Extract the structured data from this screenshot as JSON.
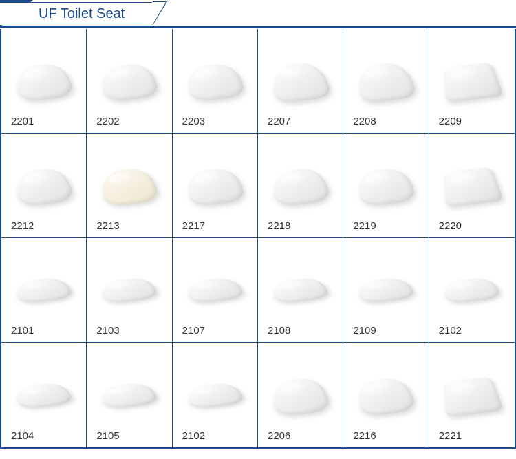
{
  "header": {
    "title": "UF Toilet Seat"
  },
  "theme": {
    "border_color": "#1a4b8c",
    "text_color": "#333333",
    "background": "#ffffff"
  },
  "grid": {
    "columns": 6,
    "rows": 4,
    "items": [
      {
        "sku": "2201",
        "shape": "round"
      },
      {
        "sku": "2202",
        "shape": "round"
      },
      {
        "sku": "2203",
        "shape": "round"
      },
      {
        "sku": "2207",
        "shape": "elongated"
      },
      {
        "sku": "2208",
        "shape": "elongated"
      },
      {
        "sku": "2209",
        "shape": "square"
      },
      {
        "sku": "2212",
        "shape": "round"
      },
      {
        "sku": "2213",
        "shape": "cream"
      },
      {
        "sku": "2217",
        "shape": "round"
      },
      {
        "sku": "2218",
        "shape": "round"
      },
      {
        "sku": "2219",
        "shape": "round"
      },
      {
        "sku": "2220",
        "shape": "square"
      },
      {
        "sku": "2101",
        "shape": "thin"
      },
      {
        "sku": "2103",
        "shape": "thin"
      },
      {
        "sku": "2107",
        "shape": "thin"
      },
      {
        "sku": "2108",
        "shape": "thin"
      },
      {
        "sku": "2109",
        "shape": "thin"
      },
      {
        "sku": "2102",
        "shape": "thin"
      },
      {
        "sku": "2104",
        "shape": "thin"
      },
      {
        "sku": "2105",
        "shape": "thin"
      },
      {
        "sku": "2102",
        "shape": "thin"
      },
      {
        "sku": "2206",
        "shape": "round"
      },
      {
        "sku": "2216",
        "shape": "round"
      },
      {
        "sku": "2221",
        "shape": "square"
      }
    ]
  }
}
